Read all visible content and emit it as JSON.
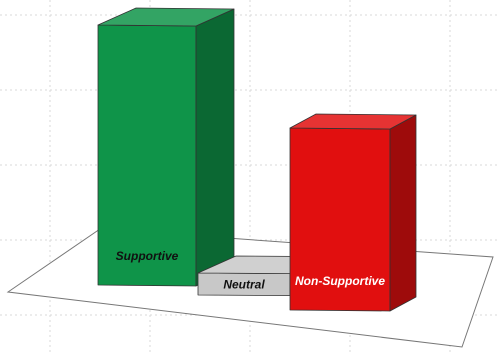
{
  "chart_data": {
    "type": "bar",
    "style": "3d",
    "categories": [
      "Supportive",
      "Neutral",
      "Non-Supportive"
    ],
    "values": [
      100,
      5,
      70
    ],
    "ylim": [
      0,
      100
    ],
    "title": "",
    "xlabel": "",
    "ylabel": "",
    "grid": true,
    "legend": "none",
    "data_labels": "category names inside bars",
    "colors": {
      "Supportive": "#0f9449",
      "Neutral": "#c8c8c8",
      "Non-Supportive": "#e10f0f"
    },
    "label_colors": {
      "Supportive": "#111111",
      "Neutral": "#111111",
      "Non-Supportive": "#ffffff"
    }
  }
}
